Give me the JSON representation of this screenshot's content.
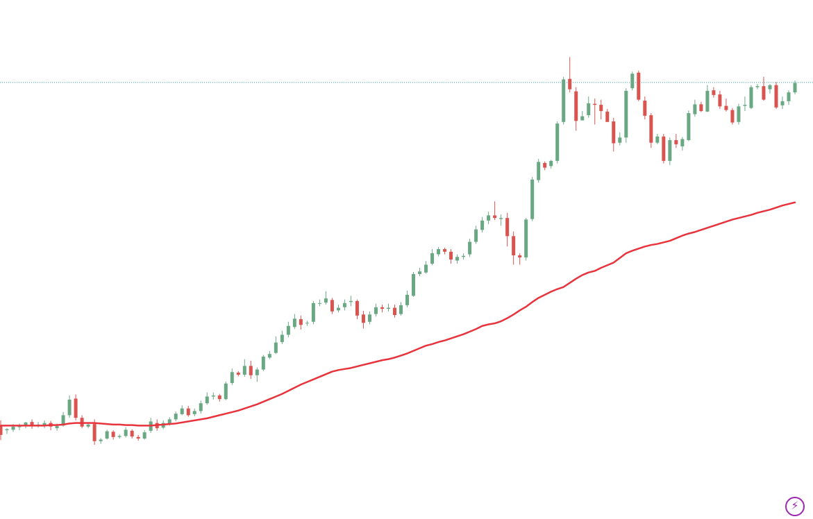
{
  "chart_data": {
    "type": "candlestick",
    "colors": {
      "up": "#6aa884",
      "down": "#d9534f",
      "ma": "#e8323c",
      "price_line": "#26a69a",
      "badge": "#9c27b0"
    },
    "ylim": [
      0,
      1000
    ],
    "reference_line": 841,
    "candles": [
      [
        180,
        162,
        190,
        152
      ],
      [
        171,
        173,
        175,
        164
      ],
      [
        172,
        178,
        183,
        168
      ],
      [
        177,
        179,
        184,
        171
      ],
      [
        180,
        186,
        187,
        175
      ],
      [
        187,
        180,
        192,
        174
      ],
      [
        180,
        182,
        187,
        176
      ],
      [
        180,
        185,
        190,
        175
      ],
      [
        185,
        178,
        189,
        171
      ],
      [
        175,
        179,
        184,
        170
      ],
      [
        180,
        200,
        206,
        178
      ],
      [
        200,
        230,
        238,
        195
      ],
      [
        232,
        195,
        240,
        190
      ],
      [
        195,
        178,
        200,
        175
      ],
      [
        178,
        182,
        185,
        175
      ],
      [
        183,
        150,
        192,
        143
      ],
      [
        150,
        153,
        156,
        145
      ],
      [
        155,
        169,
        172,
        153
      ],
      [
        168,
        158,
        171,
        153
      ],
      [
        158,
        160,
        163,
        155
      ],
      [
        160,
        172,
        177,
        157
      ],
      [
        170,
        159,
        173,
        155
      ],
      [
        158,
        155,
        162,
        151
      ],
      [
        155,
        167,
        171,
        153
      ],
      [
        170,
        188,
        195,
        166
      ],
      [
        185,
        175,
        192,
        170
      ],
      [
        176,
        185,
        190,
        173
      ],
      [
        183,
        192,
        196,
        180
      ],
      [
        192,
        203,
        207,
        188
      ],
      [
        202,
        213,
        219,
        200
      ],
      [
        213,
        200,
        218,
        197
      ],
      [
        202,
        208,
        213,
        198
      ],
      [
        208,
        223,
        228,
        203
      ],
      [
        223,
        236,
        244,
        220
      ],
      [
        236,
        238,
        244,
        230
      ],
      [
        238,
        231,
        241,
        226
      ],
      [
        231,
        261,
        265,
        229
      ],
      [
        262,
        283,
        290,
        258
      ],
      [
        282,
        278,
        285,
        275
      ],
      [
        278,
        295,
        308,
        274
      ],
      [
        295,
        277,
        305,
        270
      ],
      [
        277,
        288,
        292,
        264
      ],
      [
        288,
        313,
        316,
        285
      ],
      [
        311,
        318,
        324,
        308
      ],
      [
        320,
        340,
        352,
        318
      ],
      [
        341,
        355,
        363,
        337
      ],
      [
        355,
        372,
        380,
        350
      ],
      [
        370,
        386,
        395,
        366
      ],
      [
        385,
        374,
        392,
        365
      ],
      [
        377,
        378,
        382,
        372
      ],
      [
        380,
        416,
        420,
        375
      ],
      [
        416,
        416,
        423,
        410
      ],
      [
        417,
        425,
        439,
        413
      ],
      [
        422,
        400,
        426,
        395
      ],
      [
        402,
        407,
        413,
        398
      ],
      [
        408,
        416,
        423,
        402
      ],
      [
        418,
        420,
        430,
        410
      ],
      [
        420,
        392,
        423,
        385
      ],
      [
        394,
        378,
        401,
        367
      ],
      [
        380,
        394,
        400,
        375
      ],
      [
        395,
        408,
        415,
        390
      ],
      [
        408,
        405,
        413,
        398
      ],
      [
        405,
        407,
        415,
        400
      ],
      [
        407,
        393,
        413,
        388
      ],
      [
        395,
        412,
        418,
        392
      ],
      [
        412,
        432,
        440,
        408
      ],
      [
        430,
        472,
        476,
        428
      ],
      [
        472,
        477,
        484,
        468
      ],
      [
        475,
        490,
        497,
        473
      ],
      [
        492,
        512,
        520,
        489
      ],
      [
        510,
        520,
        524,
        506
      ],
      [
        520,
        515,
        523,
        510
      ],
      [
        515,
        500,
        520,
        492
      ],
      [
        498,
        505,
        510,
        492
      ],
      [
        505,
        507,
        512,
        500
      ],
      [
        510,
        534,
        540,
        505
      ],
      [
        534,
        558,
        565,
        530
      ],
      [
        557,
        575,
        582,
        552
      ],
      [
        575,
        585,
        592,
        568
      ],
      [
        585,
        580,
        612,
        576
      ],
      [
        578,
        580,
        587,
        565
      ],
      [
        580,
        545,
        590,
        525
      ],
      [
        545,
        508,
        554,
        490
      ],
      [
        508,
        504,
        512,
        490
      ],
      [
        504,
        577,
        580,
        498
      ],
      [
        578,
        654,
        659,
        574
      ],
      [
        653,
        688,
        694,
        648
      ],
      [
        686,
        677,
        689,
        672
      ],
      [
        680,
        690,
        692,
        675
      ],
      [
        690,
        762,
        766,
        685
      ],
      [
        765,
        847,
        852,
        760
      ],
      [
        848,
        828,
        890,
        822
      ],
      [
        824,
        767,
        832,
        748
      ],
      [
        768,
        776,
        786,
        770
      ],
      [
        778,
        801,
        814,
        773
      ],
      [
        800,
        798,
        810,
        760
      ],
      [
        798,
        786,
        808,
        770
      ],
      [
        785,
        765,
        790,
        768
      ],
      [
        766,
        724,
        773,
        708
      ],
      [
        725,
        735,
        745,
        720
      ],
      [
        735,
        825,
        830,
        725
      ],
      [
        830,
        858,
        862,
        826
      ],
      [
        860,
        808,
        864,
        805
      ],
      [
        806,
        777,
        814,
        770
      ],
      [
        778,
        725,
        782,
        715
      ],
      [
        725,
        737,
        742,
        722
      ],
      [
        737,
        690,
        742,
        685
      ],
      [
        690,
        730,
        735,
        682
      ],
      [
        730,
        722,
        742,
        715
      ],
      [
        718,
        732,
        736,
        710
      ],
      [
        730,
        782,
        787,
        728
      ],
      [
        780,
        799,
        808,
        775
      ],
      [
        799,
        786,
        804,
        784
      ],
      [
        785,
        825,
        836,
        784
      ],
      [
        826,
        817,
        832,
        812
      ],
      [
        818,
        795,
        825,
        790
      ],
      [
        796,
        788,
        810,
        785
      ],
      [
        788,
        764,
        792,
        760
      ],
      [
        765,
        795,
        800,
        760
      ],
      [
        796,
        798,
        814,
        786
      ],
      [
        792,
        832,
        836,
        790
      ],
      [
        832,
        834,
        838,
        828
      ],
      [
        834,
        808,
        852,
        806
      ],
      [
        828,
        836,
        838,
        820
      ],
      [
        836,
        793,
        842,
        790
      ],
      [
        797,
        805,
        814,
        790
      ],
      [
        805,
        822,
        826,
        798
      ],
      [
        822,
        840,
        845,
        818
      ]
    ],
    "ma": [
      180,
      180,
      180,
      180,
      180,
      180,
      180,
      180,
      181,
      181,
      182,
      184,
      185,
      185,
      185,
      185,
      184,
      183,
      182,
      182,
      181,
      181,
      180,
      180,
      180,
      181,
      182,
      183,
      184,
      186,
      188,
      190,
      192,
      194,
      197,
      200,
      203,
      206,
      209,
      213,
      217,
      221,
      226,
      231,
      236,
      241,
      247,
      253,
      259,
      264,
      269,
      274,
      279,
      284,
      287,
      289,
      291,
      294,
      297,
      300,
      303,
      306,
      308,
      311,
      315,
      319,
      324,
      329,
      334,
      337,
      341,
      344,
      348,
      352,
      356,
      361,
      366,
      372,
      375,
      377,
      381,
      387,
      394,
      402,
      409,
      418,
      426,
      432,
      438,
      443,
      447,
      455,
      463,
      470,
      475,
      478,
      484,
      489,
      494,
      503,
      512,
      517,
      521,
      525,
      528,
      530,
      533,
      536,
      541,
      546,
      550,
      553,
      557,
      561,
      565,
      569,
      573,
      577,
      580,
      583,
      586,
      590,
      593,
      596,
      600,
      604,
      607,
      610
    ]
  }
}
